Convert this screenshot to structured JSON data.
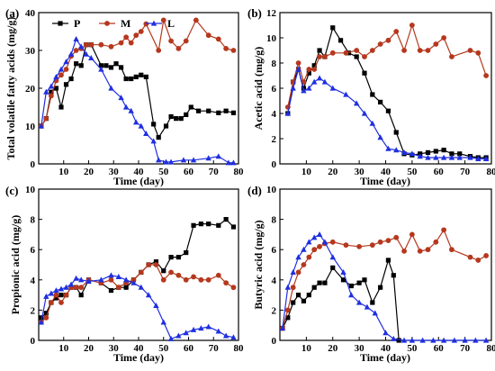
{
  "colors": {
    "P": "#000000",
    "M": "#b5381e",
    "L": "#1f2fe0"
  },
  "chart_data": [
    {
      "type": "line",
      "panel_label": "(a)",
      "ylabel": "Total volatile fatty acids (mg/g)",
      "xlabel": "Time (day)",
      "xlim": [
        0,
        80
      ],
      "ylim": [
        0,
        40
      ],
      "xticks": [
        "10",
        "20",
        "30",
        "40",
        "50",
        "60",
        "70",
        "80"
      ],
      "yticks": [
        "0",
        "10",
        "20",
        "30",
        "40"
      ],
      "legend": {
        "placement": "top-left",
        "entries": [
          "P",
          "M",
          "L"
        ]
      },
      "series": [
        {
          "name": "P",
          "marker": "square",
          "x": [
            1,
            3,
            5,
            7,
            9,
            11,
            13,
            15,
            17,
            19,
            21,
            25,
            27,
            29,
            31,
            33,
            35,
            37,
            39,
            41,
            43,
            46,
            48,
            51,
            53,
            55,
            57,
            59,
            61,
            64,
            68,
            72,
            75,
            78
          ],
          "y": [
            10,
            12,
            19,
            20,
            15,
            21,
            22.5,
            26.5,
            26,
            31.5,
            31.5,
            26,
            26,
            25.5,
            26.5,
            25.5,
            22.5,
            22.5,
            23,
            23.5,
            23,
            10.5,
            7,
            10,
            12.5,
            12,
            12,
            13,
            15,
            14,
            14,
            13.5,
            14,
            13.5
          ]
        },
        {
          "name": "M",
          "marker": "circle",
          "x": [
            1,
            3,
            5,
            7,
            9,
            11,
            13,
            15,
            17,
            19,
            21,
            25,
            29,
            33,
            35,
            37,
            39,
            41,
            43,
            48,
            50,
            53,
            56,
            59,
            63,
            68,
            72,
            75,
            78
          ],
          "y": [
            10,
            12,
            18,
            22,
            23.5,
            25,
            28.5,
            30,
            30.5,
            31.5,
            31.5,
            31.5,
            31,
            32,
            33.5,
            32,
            34,
            35,
            37,
            30,
            38,
            32.5,
            30.5,
            32.5,
            38,
            34,
            33,
            30.5,
            30
          ]
        },
        {
          "name": "L",
          "marker": "triangle",
          "x": [
            1,
            3,
            5,
            7,
            9,
            11,
            13,
            15,
            17,
            19,
            21,
            25,
            29,
            33,
            35,
            37,
            39,
            41,
            43,
            46,
            48,
            51,
            53,
            58,
            62,
            68,
            72,
            76,
            78
          ],
          "y": [
            10,
            19,
            20.5,
            23,
            25,
            27,
            29,
            33,
            31,
            29,
            28,
            25,
            20,
            17.5,
            15,
            14,
            11,
            10,
            8,
            6,
            1,
            0.5,
            0.5,
            1,
            1,
            1.5,
            2,
            0.3,
            0.3
          ]
        }
      ]
    },
    {
      "type": "line",
      "panel_label": "(b)",
      "ylabel": "Acetic acid (mg/g)",
      "xlabel": "Time (day)",
      "xlim": [
        0,
        80
      ],
      "ylim": [
        0,
        12
      ],
      "xticks": [
        "10",
        "20",
        "30",
        "40",
        "50",
        "60",
        "70",
        "80"
      ],
      "yticks": [
        "0",
        "2",
        "4",
        "6",
        "8",
        "10",
        "12"
      ],
      "series": [
        {
          "name": "P",
          "marker": "square",
          "x": [
            3,
            5,
            7,
            9,
            11,
            13,
            15,
            17,
            20,
            23,
            26,
            29,
            32,
            35,
            38,
            41,
            44,
            47,
            50,
            53,
            56,
            59,
            62,
            65,
            68,
            72,
            75,
            78
          ],
          "y": [
            4,
            6.5,
            7.5,
            6,
            7.2,
            7.8,
            9,
            8.5,
            10.8,
            9.8,
            8.8,
            8.5,
            7.2,
            5.5,
            4.9,
            4.2,
            2.5,
            0.8,
            0.7,
            0.8,
            0.9,
            1,
            1.1,
            0.8,
            0.8,
            0.6,
            0.5,
            0.5
          ]
        },
        {
          "name": "M",
          "marker": "circle",
          "x": [
            3,
            5,
            7,
            9,
            11,
            13,
            15,
            17,
            20,
            25,
            29,
            32,
            35,
            38,
            41,
            44,
            47,
            50,
            53,
            56,
            59,
            62,
            65,
            72,
            75,
            78
          ],
          "y": [
            4.5,
            6.5,
            8,
            6.5,
            7.5,
            7.5,
            8.5,
            8.5,
            8.8,
            8.8,
            9,
            8.5,
            9,
            9.5,
            9.8,
            10.5,
            9,
            11,
            9,
            9,
            9.5,
            10,
            8.5,
            9,
            8.8,
            7
          ]
        },
        {
          "name": "L",
          "marker": "triangle",
          "x": [
            3,
            5,
            7,
            9,
            11,
            13,
            15,
            17,
            20,
            25,
            29,
            32,
            35,
            38,
            41,
            44,
            47,
            50,
            53,
            56,
            59,
            62,
            65,
            68,
            72,
            75,
            78
          ],
          "y": [
            4,
            6,
            7.5,
            5.8,
            6,
            6.5,
            6.8,
            6.5,
            6,
            5.5,
            4.8,
            4,
            3.2,
            2.1,
            1.2,
            1.1,
            0.9,
            0.8,
            0.6,
            0.5,
            0.5,
            0.5,
            0.5,
            0.5,
            0.5,
            0.4,
            0.4
          ]
        }
      ]
    },
    {
      "type": "line",
      "panel_label": "(c)",
      "ylabel": "Propionic acid (mg/g)",
      "xlabel": "Time (day)",
      "xlim": [
        0,
        80
      ],
      "ylim": [
        0,
        10
      ],
      "xticks": [
        "10",
        "20",
        "30",
        "40",
        "50",
        "60",
        "70",
        "80"
      ],
      "yticks": [
        "0",
        "2",
        "4",
        "6",
        "8",
        "10"
      ],
      "series": [
        {
          "name": "P",
          "marker": "square",
          "x": [
            1,
            3,
            5,
            7,
            9,
            11,
            13,
            15,
            17,
            20,
            25,
            29,
            32,
            35,
            38,
            41,
            44,
            47,
            50,
            53,
            56,
            59,
            62,
            65,
            68,
            72,
            75,
            78
          ],
          "y": [
            1.5,
            1.8,
            2.5,
            2.8,
            3,
            3,
            3.5,
            3.5,
            3,
            4,
            3.8,
            3.3,
            3.5,
            3.5,
            4,
            4.5,
            5,
            5.2,
            4.6,
            5.5,
            5.5,
            5.8,
            7.6,
            7.7,
            7.7,
            7.6,
            8,
            7.5
          ]
        },
        {
          "name": "M",
          "marker": "circle",
          "x": [
            1,
            3,
            5,
            7,
            9,
            11,
            13,
            15,
            17,
            20,
            25,
            29,
            32,
            35,
            38,
            41,
            44,
            47,
            50,
            53,
            56,
            59,
            62,
            65,
            68,
            72,
            75,
            78
          ],
          "y": [
            1.2,
            1.5,
            2.5,
            3,
            2.5,
            3,
            3.5,
            3.5,
            3.5,
            4,
            3.8,
            4,
            3.5,
            3.8,
            4,
            4.5,
            5,
            5,
            4,
            4.5,
            4.3,
            4,
            4.2,
            4,
            4,
            4.3,
            3.8,
            3.5
          ]
        },
        {
          "name": "L",
          "marker": "triangle",
          "x": [
            1,
            3,
            5,
            7,
            9,
            11,
            13,
            15,
            17,
            20,
            25,
            29,
            32,
            35,
            38,
            41,
            44,
            47,
            50,
            53,
            56,
            59,
            62,
            65,
            68,
            72,
            75,
            78
          ],
          "y": [
            1.2,
            2.9,
            3.1,
            3.3,
            3.4,
            3.5,
            3.7,
            4.1,
            4,
            3.9,
            4,
            4.3,
            4.2,
            4,
            3.8,
            3.5,
            3,
            2.3,
            1.2,
            0.1,
            0.3,
            0.5,
            0.7,
            0.8,
            0.9,
            0.6,
            0.3,
            0.2
          ]
        }
      ]
    },
    {
      "type": "line",
      "panel_label": "(d)",
      "ylabel": "Butyric acid (mg/g)",
      "xlabel": "Time (day)",
      "xlim": [
        0,
        80
      ],
      "ylim": [
        0,
        10
      ],
      "xticks": [
        "10",
        "20",
        "30",
        "40",
        "50",
        "60",
        "70",
        "80"
      ],
      "yticks": [
        "0",
        "2",
        "4",
        "6",
        "8",
        "10"
      ],
      "series": [
        {
          "name": "P",
          "marker": "square",
          "x": [
            1,
            3,
            5,
            7,
            9,
            11,
            13,
            15,
            17,
            20,
            24,
            27,
            30,
            32,
            35,
            38,
            41,
            43,
            45
          ],
          "y": [
            0.8,
            1.5,
            2.5,
            3,
            2.6,
            3,
            3.5,
            3.8,
            3.8,
            4.8,
            4,
            3.6,
            3.8,
            4,
            2.5,
            3.5,
            5.3,
            4.3,
            0
          ]
        },
        {
          "name": "M",
          "marker": "circle",
          "x": [
            1,
            3,
            5,
            7,
            9,
            11,
            13,
            15,
            17,
            20,
            25,
            30,
            35,
            38,
            41,
            44,
            47,
            50,
            53,
            56,
            59,
            62,
            65,
            72,
            75,
            78
          ],
          "y": [
            0.8,
            2,
            3.5,
            4.5,
            5,
            5.5,
            6,
            6.2,
            6.4,
            6.5,
            6.3,
            6.2,
            6.3,
            6.5,
            6.6,
            6.8,
            5.9,
            7,
            5.9,
            6,
            6.5,
            7.3,
            6,
            5.5,
            5.3,
            5.6
          ]
        },
        {
          "name": "L",
          "marker": "triangle",
          "x": [
            1,
            3,
            5,
            7,
            9,
            11,
            13,
            15,
            17,
            20,
            24,
            27,
            30,
            33,
            36,
            40,
            43,
            47,
            50,
            54,
            58,
            62,
            66,
            70,
            74,
            78
          ],
          "y": [
            0.8,
            3.5,
            4.5,
            5.5,
            6,
            6.5,
            6.8,
            7,
            6.5,
            5.5,
            4.5,
            3,
            2.5,
            2.2,
            1.8,
            0.5,
            0.1,
            0,
            0,
            0,
            0,
            0,
            0,
            0,
            0,
            0
          ]
        }
      ]
    }
  ]
}
